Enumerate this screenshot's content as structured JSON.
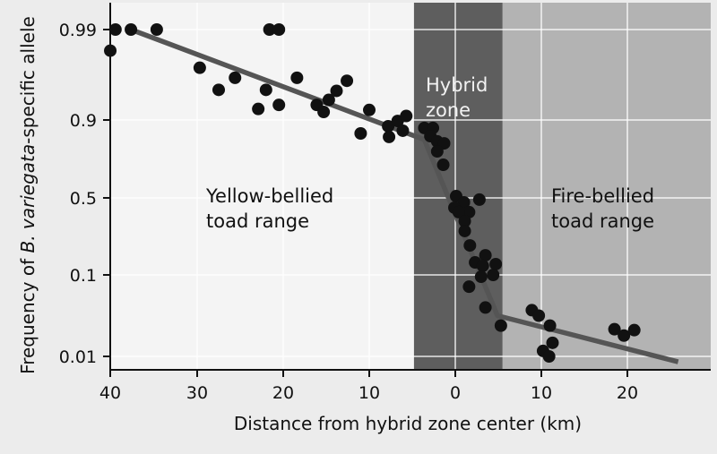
{
  "chart_data": {
    "type": "scatter",
    "xlabel": "Distance from hybrid zone center (km)",
    "ylabel_parts": [
      "Frequency of ",
      "B. variegata",
      "-specific allele"
    ],
    "x_ticks": [
      {
        "value": -40,
        "label": "40"
      },
      {
        "value": -30,
        "label": "30"
      },
      {
        "value": -20,
        "label": "20"
      },
      {
        "value": -10,
        "label": "10"
      },
      {
        "value": 0,
        "label": "0"
      },
      {
        "value": 10,
        "label": "10"
      },
      {
        "value": 20,
        "label": "20"
      }
    ],
    "y_ticks": [
      {
        "value": 0.99,
        "label": "0.99"
      },
      {
        "value": 0.9,
        "label": "0.9"
      },
      {
        "value": 0.5,
        "label": "0.5"
      },
      {
        "value": 0.1,
        "label": "0.1"
      },
      {
        "value": 0.01,
        "label": "0.01"
      }
    ],
    "xlim": [
      -40,
      29.7
    ],
    "y_scale": "logit-like (ticks evenly spaced)",
    "grid": true,
    "regions": [
      {
        "name": "yellow-bellied",
        "x_range": [
          -40,
          -4.8
        ],
        "label_lines": [
          "Yellow-bellied",
          "toad range"
        ],
        "color": "#f4f4f4"
      },
      {
        "name": "hybrid",
        "x_range": [
          -4.8,
          5.5
        ],
        "label_lines": [
          "Hybrid",
          "zone"
        ],
        "color": "#5e5e5e"
      },
      {
        "name": "fire-bellied",
        "x_range": [
          5.5,
          29.7
        ],
        "label_lines": [
          "Fire-bellied",
          "toad range"
        ],
        "color": "#b3b3b3"
      }
    ],
    "points": [
      [
        -40.1,
        0.969
      ],
      [
        -39.5,
        0.99
      ],
      [
        -37.7,
        0.99
      ],
      [
        -34.7,
        0.99
      ],
      [
        -29.7,
        0.952
      ],
      [
        -27.5,
        0.93
      ],
      [
        -25.6,
        0.942
      ],
      [
        -22.9,
        0.911
      ],
      [
        -22.0,
        0.93
      ],
      [
        -21.6,
        0.99
      ],
      [
        -20.5,
        0.99
      ],
      [
        -20.5,
        0.915
      ],
      [
        -18.4,
        0.942
      ],
      [
        -16.1,
        0.915
      ],
      [
        -15.3,
        0.908
      ],
      [
        -14.7,
        0.92
      ],
      [
        -13.8,
        0.929
      ],
      [
        -12.6,
        0.939
      ],
      [
        -11.0,
        0.831
      ],
      [
        -10.0,
        0.91
      ],
      [
        -7.8,
        0.868
      ],
      [
        -7.7,
        0.813
      ],
      [
        -6.7,
        0.895
      ],
      [
        -6.1,
        0.845
      ],
      [
        -5.7,
        0.904
      ],
      [
        -3.6,
        0.859
      ],
      [
        -2.6,
        0.859
      ],
      [
        -2.9,
        0.817
      ],
      [
        -2.1,
        0.79
      ],
      [
        -1.3,
        0.78
      ],
      [
        -2.1,
        0.739
      ],
      [
        -1.4,
        0.67
      ],
      [
        0.1,
        0.509
      ],
      [
        1.0,
        0.477
      ],
      [
        2.8,
        0.491
      ],
      [
        -0.1,
        0.449
      ],
      [
        1.6,
        0.426
      ],
      [
        0.4,
        0.426
      ],
      [
        1.1,
        0.379
      ],
      [
        1.1,
        0.328
      ],
      [
        1.7,
        0.253
      ],
      [
        2.3,
        0.165
      ],
      [
        3.5,
        0.202
      ],
      [
        3.2,
        0.147
      ],
      [
        4.7,
        0.156
      ],
      [
        3.0,
        0.098
      ],
      [
        4.4,
        0.1
      ],
      [
        1.6,
        0.087
      ],
      [
        3.5,
        0.064
      ],
      [
        5.3,
        0.044
      ],
      [
        8.9,
        0.061
      ],
      [
        9.7,
        0.055
      ],
      [
        11.0,
        0.044
      ],
      [
        11.3,
        0.025
      ],
      [
        10.2,
        0.016
      ],
      [
        10.9,
        0.01
      ],
      [
        18.5,
        0.04
      ],
      [
        19.6,
        0.033
      ],
      [
        20.8,
        0.039
      ]
    ],
    "fit_line": [
      [
        -37.7,
        0.99
      ],
      [
        -3.6,
        0.799
      ],
      [
        4.9,
        0.055
      ],
      [
        25.9,
        0.004
      ]
    ],
    "colors": {
      "points": "#111111",
      "line": "#555555",
      "grid": "#ffffff"
    }
  }
}
